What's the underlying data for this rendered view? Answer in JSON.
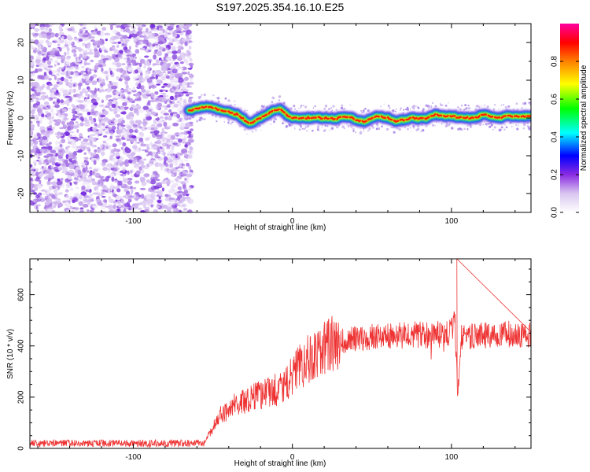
{
  "chart_data": [
    {
      "type": "heatmap",
      "title": "S197.2025.354.16.10.E25",
      "xlabel": "Height of straight line (km)",
      "ylabel": "Frequency (Hz)",
      "xlim": [
        -165,
        150
      ],
      "ylim": [
        -25,
        25
      ],
      "xticks": [
        -100,
        0,
        100
      ],
      "yticks": [
        -20,
        -10,
        0,
        10,
        20
      ],
      "xtick_labels": [
        "-100",
        "0",
        "100"
      ],
      "ytick_labels": [
        "-20",
        "-10",
        "0",
        "10",
        "20"
      ],
      "noise_region_x": [
        -165,
        -63
      ],
      "ridge": {
        "x": [
          -65,
          -60,
          -55,
          -50,
          -45,
          -40,
          -35,
          -30,
          -27,
          -24,
          -20,
          -16,
          -12,
          -8,
          -4,
          0,
          5,
          10,
          15,
          20,
          25,
          30,
          35,
          40,
          45,
          50,
          55,
          60,
          65,
          70,
          75,
          80,
          85,
          90,
          95,
          100,
          105,
          110,
          115,
          120,
          125,
          130,
          135,
          140,
          145,
          150
        ],
        "y": [
          2,
          2.5,
          3,
          2.7,
          2,
          1.6,
          1,
          -0.5,
          -1.5,
          -1,
          0,
          1,
          2,
          2.5,
          1,
          0,
          0,
          0,
          0,
          0,
          -0.2,
          0,
          0.3,
          -0.5,
          -1,
          0,
          0.5,
          0,
          -1,
          -0.5,
          0,
          -0.2,
          0,
          1,
          0.5,
          0.5,
          0.2,
          0,
          0,
          1,
          0.5,
          0,
          0.5,
          0.3,
          0.5,
          0.6
        ]
      },
      "colorbar": {
        "label": "Normalized spectral amplitude",
        "range": [
          0,
          1
        ],
        "ticks": [
          0.0,
          0.2,
          0.4,
          0.6,
          0.8
        ],
        "tick_labels": [
          "0.0",
          "0.2",
          "0.4",
          "0.6",
          "0.8"
        ],
        "colors": [
          "#ffffff",
          "#d9c6f0",
          "#8a2be2",
          "#0000ff",
          "#00ffff",
          "#00ff00",
          "#ffff00",
          "#ff8000",
          "#ff0000",
          "#ff00a0"
        ]
      }
    },
    {
      "type": "line",
      "xlabel": "Height of straight line (km)",
      "ylabel": "SNR (10 * v/v)",
      "xlim": [
        -165,
        150
      ],
      "ylim": [
        0,
        740
      ],
      "xticks": [
        -100,
        0,
        100
      ],
      "yticks": [
        0,
        200,
        400,
        600
      ],
      "xtick_labels": [
        "-100",
        "0",
        "100"
      ],
      "ytick_labels": [
        "0",
        "200",
        "400",
        "600"
      ],
      "color": "#ee3333",
      "trend": {
        "x": [
          -165,
          -55,
          -52,
          -45,
          -35,
          -25,
          -15,
          -8,
          -4,
          0,
          5,
          12,
          20,
          30,
          40,
          60,
          90,
          100,
          102,
          104,
          106,
          110,
          130,
          150
        ],
        "y": [
          20,
          20,
          60,
          130,
          175,
          200,
          225,
          230,
          245,
          290,
          320,
          360,
          395,
          420,
          430,
          440,
          445,
          450,
          520,
          210,
          430,
          440,
          445,
          445
        ]
      },
      "spikes": [
        {
          "x": 103.4,
          "y": 740
        },
        {
          "x": 103.8,
          "y": 205
        }
      ]
    }
  ]
}
